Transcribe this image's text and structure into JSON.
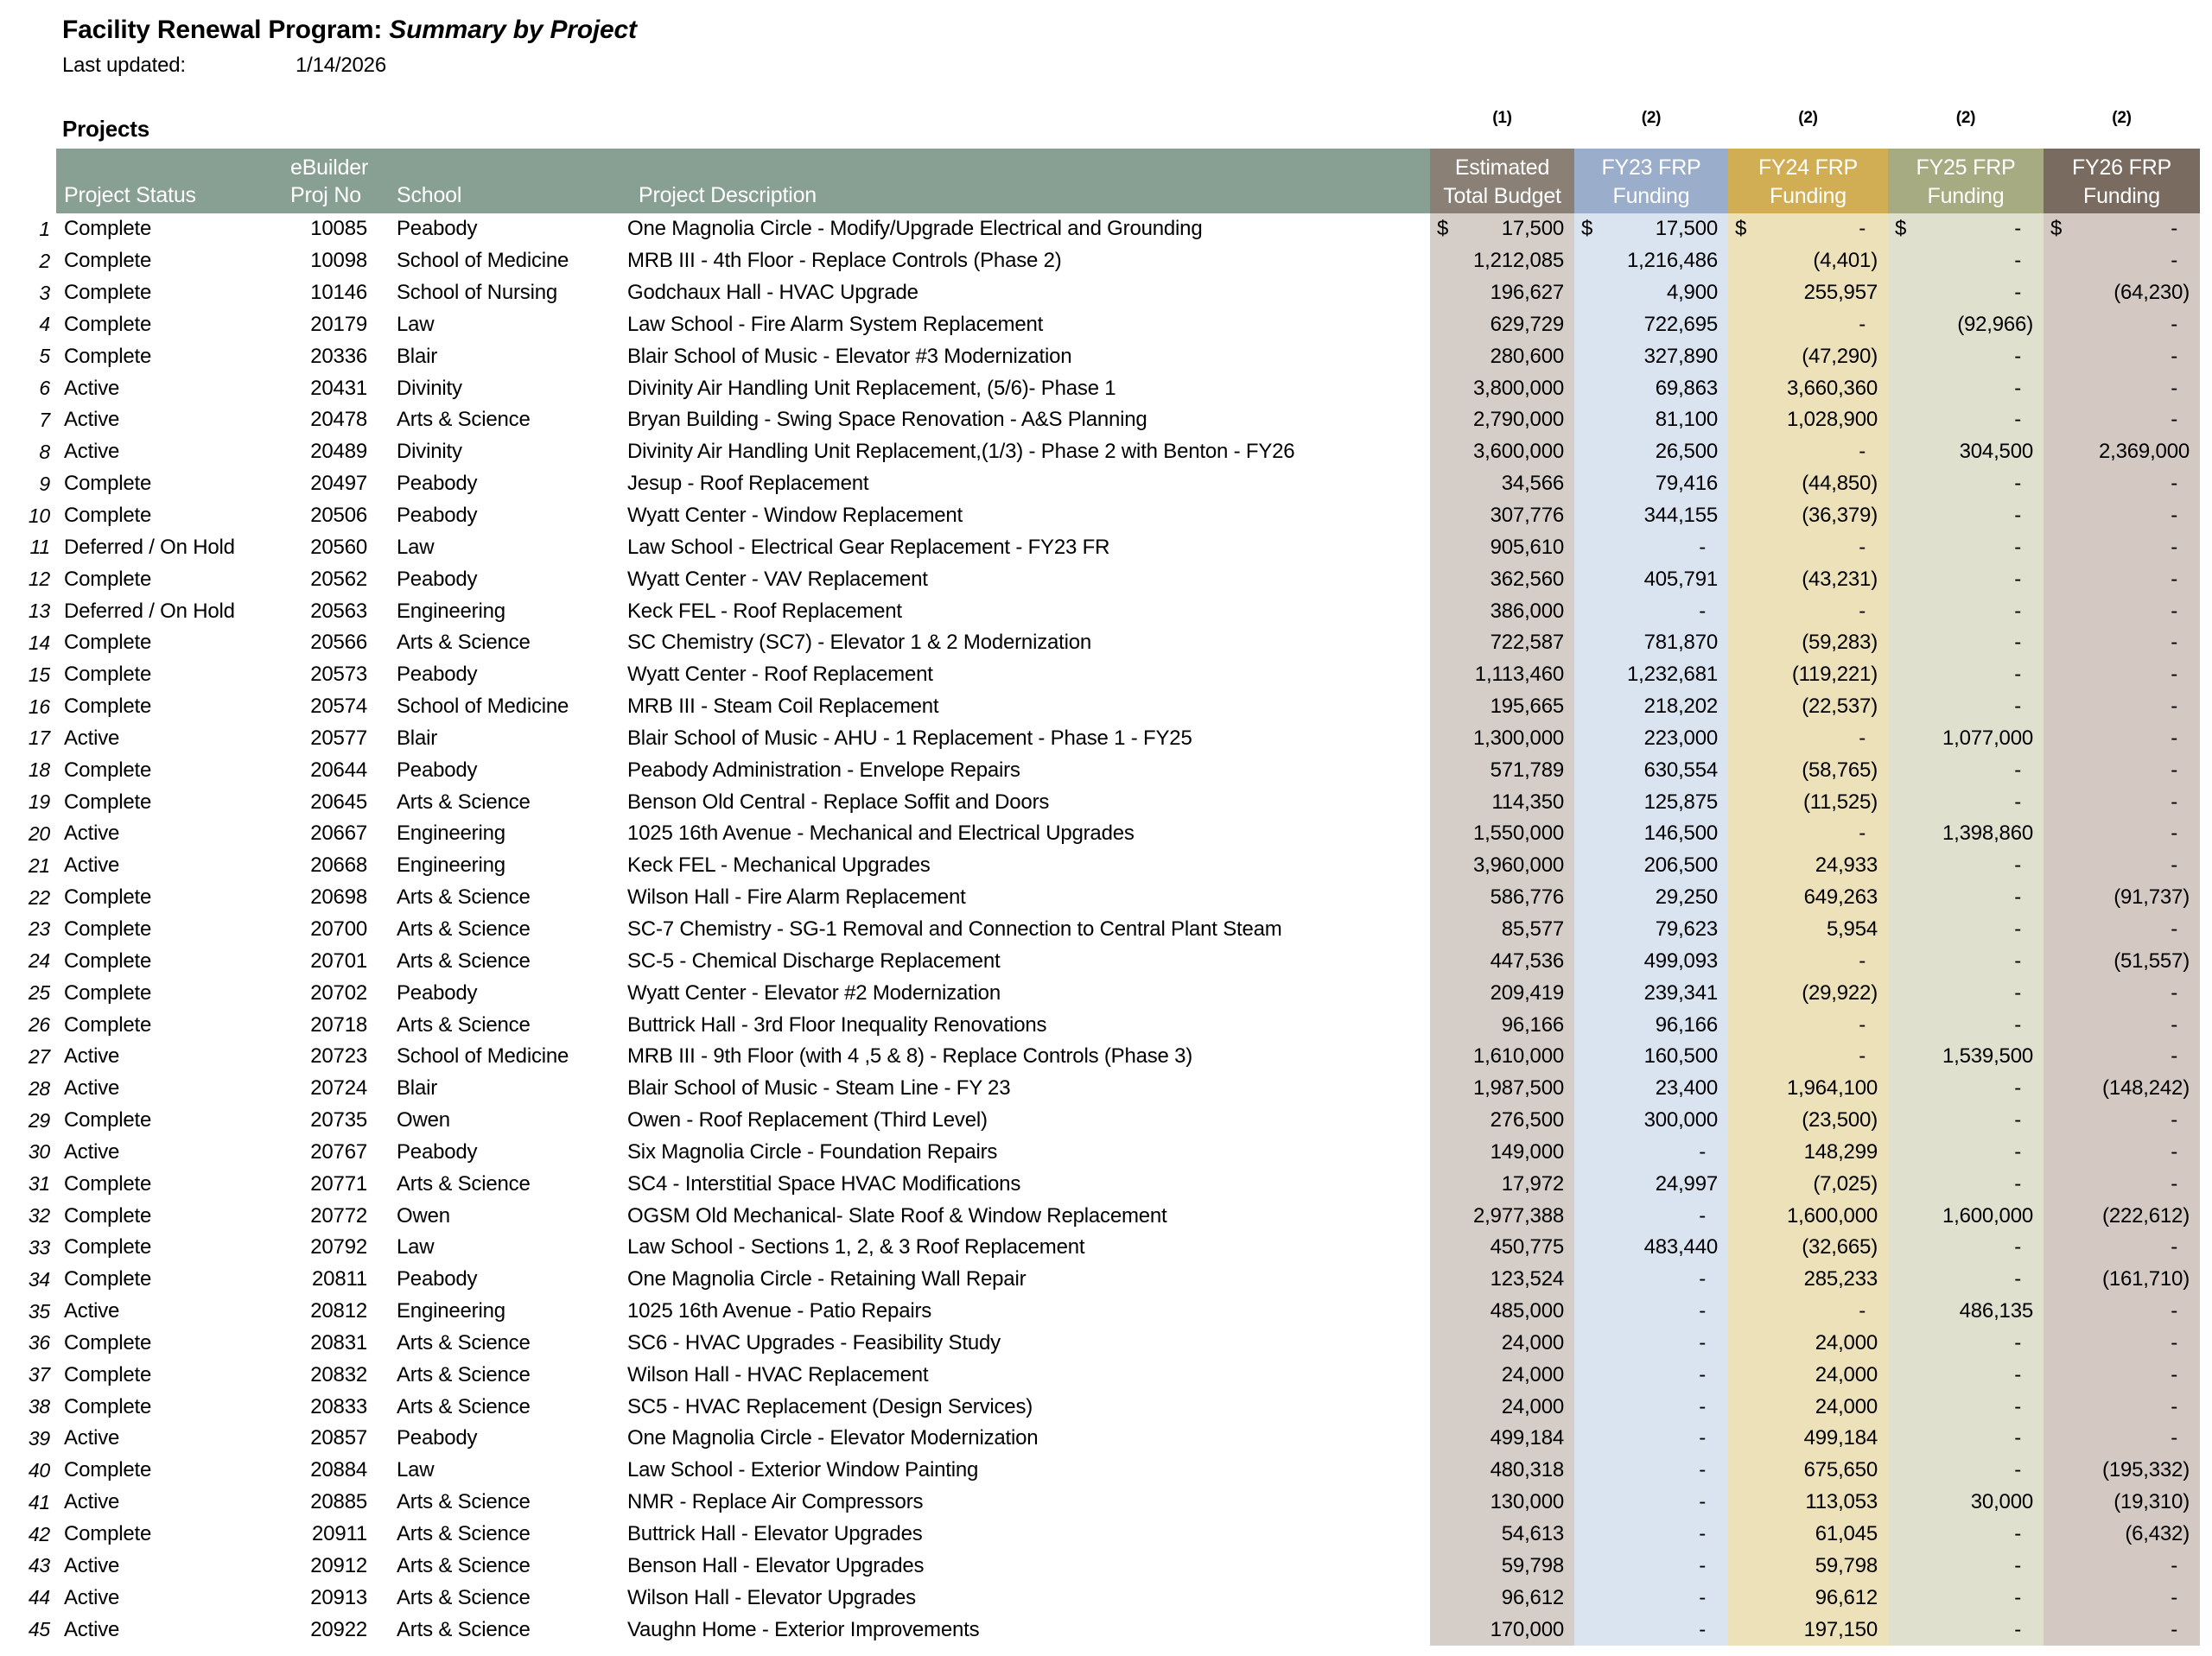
{
  "title": {
    "prefix": "Facility Renewal Program: ",
    "emphasis": "Summary by Project"
  },
  "last_updated": {
    "label": "Last updated:",
    "value": "1/14/2026"
  },
  "section_label": "Projects",
  "columns": {
    "left_header_bg": "#87A093",
    "row_number": "",
    "status": "Project Status",
    "projno_line1": "eBuilder",
    "projno_line2": "Proj No",
    "school": "School",
    "description": "Project Description",
    "funding": [
      {
        "note": "(1)",
        "line1": "Estimated",
        "line2": "Total Budget",
        "header_bg": "#8A8076",
        "body_bg": "#D5CEC8",
        "width": 167
      },
      {
        "note": "(2)",
        "line1": "FY23 FRP",
        "line2": "Funding",
        "header_bg": "#9AAECB",
        "body_bg": "#DAE3F0",
        "width": 178
      },
      {
        "note": "(2)",
        "line1": "FY24 FRP",
        "line2": "Funding",
        "header_bg": "#D1AE54",
        "body_bg": "#EDE1BA",
        "width": 185
      },
      {
        "note": "(2)",
        "line1": "FY25 FRP",
        "line2": "Funding",
        "header_bg": "#A6AB82",
        "body_bg": "#DFE0CE",
        "width": 180
      },
      {
        "note": "(2)",
        "line1": "FY26 FRP",
        "line2": "Funding",
        "header_bg": "#7A6B60",
        "body_bg": "#D3C9C2",
        "width": 181
      }
    ]
  },
  "rows": [
    {
      "num": "1",
      "status": "Complete",
      "proj": "10085",
      "school": "Peabody",
      "desc": "One Magnolia Circle - Modify/Upgrade Electrical and Grounding",
      "amounts": [
        "17,500",
        "17,500",
        "-",
        "-",
        "-"
      ],
      "dollar": true
    },
    {
      "num": "2",
      "status": "Complete",
      "proj": "10098",
      "school": "School of Medicine",
      "desc": "MRB III - 4th Floor - Replace Controls (Phase 2)",
      "amounts": [
        "1,212,085",
        "1,216,486",
        "(4,401)",
        "-",
        "-"
      ],
      "dollar": false
    },
    {
      "num": "3",
      "status": "Complete",
      "proj": "10146",
      "school": "School of Nursing",
      "desc": "Godchaux Hall - HVAC Upgrade",
      "amounts": [
        "196,627",
        "4,900",
        "255,957",
        "-",
        "(64,230)"
      ],
      "dollar": false
    },
    {
      "num": "4",
      "status": "Complete",
      "proj": "20179",
      "school": "Law",
      "desc": "Law School - Fire Alarm System Replacement",
      "amounts": [
        "629,729",
        "722,695",
        "-",
        "(92,966)",
        "-"
      ],
      "dollar": false
    },
    {
      "num": "5",
      "status": "Complete",
      "proj": "20336",
      "school": "Blair",
      "desc": "Blair School of Music - Elevator #3 Modernization",
      "amounts": [
        "280,600",
        "327,890",
        "(47,290)",
        "-",
        "-"
      ],
      "dollar": false
    },
    {
      "num": "6",
      "status": "Active",
      "proj": "20431",
      "school": "Divinity",
      "desc": "Divinity Air Handling Unit Replacement, (5/6)- Phase 1",
      "amounts": [
        "3,800,000",
        "69,863",
        "3,660,360",
        "-",
        "-"
      ],
      "dollar": false
    },
    {
      "num": "7",
      "status": "Active",
      "proj": "20478",
      "school": "Arts & Science",
      "desc": "Bryan Building - Swing Space Renovation - A&S Planning",
      "amounts": [
        "2,790,000",
        "81,100",
        "1,028,900",
        "-",
        "-"
      ],
      "dollar": false
    },
    {
      "num": "8",
      "status": "Active",
      "proj": "20489",
      "school": "Divinity",
      "desc": "Divinity Air Handling Unit Replacement,(1/3) - Phase 2 with Benton - FY26",
      "amounts": [
        "3,600,000",
        "26,500",
        "-",
        "304,500",
        "2,369,000"
      ],
      "dollar": false
    },
    {
      "num": "9",
      "status": "Complete",
      "proj": "20497",
      "school": "Peabody",
      "desc": "Jesup - Roof Replacement",
      "amounts": [
        "34,566",
        "79,416",
        "(44,850)",
        "-",
        "-"
      ],
      "dollar": false
    },
    {
      "num": "10",
      "status": "Complete",
      "proj": "20506",
      "school": "Peabody",
      "desc": "Wyatt Center - Window Replacement",
      "amounts": [
        "307,776",
        "344,155",
        "(36,379)",
        "-",
        "-"
      ],
      "dollar": false
    },
    {
      "num": "11",
      "status": "Deferred / On Hold",
      "proj": "20560",
      "school": "Law",
      "desc": "Law School - Electrical Gear Replacement - FY23 FR",
      "amounts": [
        "905,610",
        "-",
        "-",
        "-",
        "-"
      ],
      "dollar": false
    },
    {
      "num": "12",
      "status": "Complete",
      "proj": "20562",
      "school": "Peabody",
      "desc": "Wyatt Center - VAV Replacement",
      "amounts": [
        "362,560",
        "405,791",
        "(43,231)",
        "-",
        "-"
      ],
      "dollar": false
    },
    {
      "num": "13",
      "status": "Deferred / On Hold",
      "proj": "20563",
      "school": "Engineering",
      "desc": "Keck FEL - Roof Replacement",
      "amounts": [
        "386,000",
        "-",
        "-",
        "-",
        "-"
      ],
      "dollar": false
    },
    {
      "num": "14",
      "status": "Complete",
      "proj": "20566",
      "school": "Arts & Science",
      "desc": "SC Chemistry (SC7) - Elevator 1 & 2 Modernization",
      "amounts": [
        "722,587",
        "781,870",
        "(59,283)",
        "-",
        "-"
      ],
      "dollar": false
    },
    {
      "num": "15",
      "status": "Complete",
      "proj": "20573",
      "school": "Peabody",
      "desc": "Wyatt Center - Roof Replacement",
      "amounts": [
        "1,113,460",
        "1,232,681",
        "(119,221)",
        "-",
        "-"
      ],
      "dollar": false
    },
    {
      "num": "16",
      "status": "Complete",
      "proj": "20574",
      "school": "School of Medicine",
      "desc": "MRB III - Steam Coil Replacement",
      "amounts": [
        "195,665",
        "218,202",
        "(22,537)",
        "-",
        "-"
      ],
      "dollar": false
    },
    {
      "num": "17",
      "status": "Active",
      "proj": "20577",
      "school": "Blair",
      "desc": "Blair School of Music - AHU - 1 Replacement - Phase 1 - FY25",
      "amounts": [
        "1,300,000",
        "223,000",
        "-",
        "1,077,000",
        "-"
      ],
      "dollar": false
    },
    {
      "num": "18",
      "status": "Complete",
      "proj": "20644",
      "school": "Peabody",
      "desc": "Peabody Administration - Envelope Repairs",
      "amounts": [
        "571,789",
        "630,554",
        "(58,765)",
        "-",
        "-"
      ],
      "dollar": false
    },
    {
      "num": "19",
      "status": "Complete",
      "proj": "20645",
      "school": "Arts & Science",
      "desc": "Benson Old Central - Replace Soffit and Doors",
      "amounts": [
        "114,350",
        "125,875",
        "(11,525)",
        "-",
        "-"
      ],
      "dollar": false
    },
    {
      "num": "20",
      "status": "Active",
      "proj": "20667",
      "school": "Engineering",
      "desc": "1025 16th Avenue - Mechanical and Electrical Upgrades",
      "amounts": [
        "1,550,000",
        "146,500",
        "-",
        "1,398,860",
        "-"
      ],
      "dollar": false
    },
    {
      "num": "21",
      "status": "Active",
      "proj": "20668",
      "school": "Engineering",
      "desc": "Keck FEL - Mechanical Upgrades",
      "amounts": [
        "3,960,000",
        "206,500",
        "24,933",
        "-",
        "-"
      ],
      "dollar": false
    },
    {
      "num": "22",
      "status": "Complete",
      "proj": "20698",
      "school": "Arts & Science",
      "desc": "Wilson Hall - Fire Alarm Replacement",
      "amounts": [
        "586,776",
        "29,250",
        "649,263",
        "-",
        "(91,737)"
      ],
      "dollar": false
    },
    {
      "num": "23",
      "status": "Complete",
      "proj": "20700",
      "school": "Arts & Science",
      "desc": "SC-7 Chemistry - SG-1 Removal and Connection to Central Plant Steam",
      "amounts": [
        "85,577",
        "79,623",
        "5,954",
        "-",
        "-"
      ],
      "dollar": false
    },
    {
      "num": "24",
      "status": "Complete",
      "proj": "20701",
      "school": "Arts & Science",
      "desc": "SC-5 - Chemical Discharge Replacement",
      "amounts": [
        "447,536",
        "499,093",
        "-",
        "-",
        "(51,557)"
      ],
      "dollar": false
    },
    {
      "num": "25",
      "status": "Complete",
      "proj": "20702",
      "school": "Peabody",
      "desc": "Wyatt Center - Elevator #2 Modernization",
      "amounts": [
        "209,419",
        "239,341",
        "(29,922)",
        "-",
        "-"
      ],
      "dollar": false
    },
    {
      "num": "26",
      "status": "Complete",
      "proj": "20718",
      "school": "Arts & Science",
      "desc": "Buttrick Hall - 3rd Floor Inequality Renovations",
      "amounts": [
        "96,166",
        "96,166",
        "-",
        "-",
        "-"
      ],
      "dollar": false
    },
    {
      "num": "27",
      "status": "Active",
      "proj": "20723",
      "school": "School of Medicine",
      "desc": "MRB III - 9th Floor (with 4 ,5 & 8) - Replace Controls (Phase 3)",
      "amounts": [
        "1,610,000",
        "160,500",
        "-",
        "1,539,500",
        "-"
      ],
      "dollar": false
    },
    {
      "num": "28",
      "status": "Active",
      "proj": "20724",
      "school": "Blair",
      "desc": "Blair School of Music - Steam Line - FY 23",
      "amounts": [
        "1,987,500",
        "23,400",
        "1,964,100",
        "-",
        "(148,242)"
      ],
      "dollar": false
    },
    {
      "num": "29",
      "status": "Complete",
      "proj": "20735",
      "school": "Owen",
      "desc": "Owen - Roof Replacement (Third Level)",
      "amounts": [
        "276,500",
        "300,000",
        "(23,500)",
        "-",
        "-"
      ],
      "dollar": false
    },
    {
      "num": "30",
      "status": "Active",
      "proj": "20767",
      "school": "Peabody",
      "desc": "Six Magnolia Circle - Foundation Repairs",
      "amounts": [
        "149,000",
        "-",
        "148,299",
        "-",
        "-"
      ],
      "dollar": false
    },
    {
      "num": "31",
      "status": "Complete",
      "proj": "20771",
      "school": "Arts & Science",
      "desc": "SC4 - Interstitial Space HVAC Modifications",
      "amounts": [
        "17,972",
        "24,997",
        "(7,025)",
        "-",
        "-"
      ],
      "dollar": false
    },
    {
      "num": "32",
      "status": "Complete",
      "proj": "20772",
      "school": "Owen",
      "desc": "OGSM Old Mechanical- Slate Roof & Window Replacement",
      "amounts": [
        "2,977,388",
        "-",
        "1,600,000",
        "1,600,000",
        "(222,612)"
      ],
      "dollar": false
    },
    {
      "num": "33",
      "status": "Complete",
      "proj": "20792",
      "school": "Law",
      "desc": "Law School - Sections 1, 2, & 3  Roof Replacement",
      "amounts": [
        "450,775",
        "483,440",
        "(32,665)",
        "-",
        "-"
      ],
      "dollar": false
    },
    {
      "num": "34",
      "status": "Complete",
      "proj": "20811",
      "school": "Peabody",
      "desc": "One Magnolia Circle - Retaining Wall Repair",
      "amounts": [
        "123,524",
        "-",
        "285,233",
        "-",
        "(161,710)"
      ],
      "dollar": false
    },
    {
      "num": "35",
      "status": "Active",
      "proj": "20812",
      "school": "Engineering",
      "desc": "1025 16th Avenue - Patio Repairs",
      "amounts": [
        "485,000",
        "-",
        "-",
        "486,135",
        "-"
      ],
      "dollar": false
    },
    {
      "num": "36",
      "status": "Complete",
      "proj": "20831",
      "school": "Arts & Science",
      "desc": "SC6 - HVAC Upgrades - Feasibility Study",
      "amounts": [
        "24,000",
        "-",
        "24,000",
        "-",
        "-"
      ],
      "dollar": false
    },
    {
      "num": "37",
      "status": "Complete",
      "proj": "20832",
      "school": "Arts & Science",
      "desc": "Wilson Hall - HVAC Replacement",
      "amounts": [
        "24,000",
        "-",
        "24,000",
        "-",
        "-"
      ],
      "dollar": false
    },
    {
      "num": "38",
      "status": "Complete",
      "proj": "20833",
      "school": "Arts & Science",
      "desc": "SC5 - HVAC Replacement (Design Services)",
      "amounts": [
        "24,000",
        "-",
        "24,000",
        "-",
        "-"
      ],
      "dollar": false
    },
    {
      "num": "39",
      "status": "Active",
      "proj": "20857",
      "school": "Peabody",
      "desc": "One Magnolia Circle - Elevator Modernization",
      "amounts": [
        "499,184",
        "-",
        "499,184",
        "-",
        "-"
      ],
      "dollar": false
    },
    {
      "num": "40",
      "status": "Complete",
      "proj": "20884",
      "school": "Law",
      "desc": "Law School - Exterior Window Painting",
      "amounts": [
        "480,318",
        "-",
        "675,650",
        "-",
        "(195,332)"
      ],
      "dollar": false
    },
    {
      "num": "41",
      "status": "Active",
      "proj": "20885",
      "school": "Arts & Science",
      "desc": "NMR - Replace Air Compressors",
      "amounts": [
        "130,000",
        "-",
        "113,053",
        "30,000",
        "(19,310)"
      ],
      "dollar": false
    },
    {
      "num": "42",
      "status": "Complete",
      "proj": "20911",
      "school": "Arts & Science",
      "desc": "Buttrick Hall - Elevator Upgrades",
      "amounts": [
        "54,613",
        "-",
        "61,045",
        "-",
        "(6,432)"
      ],
      "dollar": false
    },
    {
      "num": "43",
      "status": "Active",
      "proj": "20912",
      "school": "Arts & Science",
      "desc": "Benson Hall - Elevator Upgrades",
      "amounts": [
        "59,798",
        "-",
        "59,798",
        "-",
        "-"
      ],
      "dollar": false
    },
    {
      "num": "44",
      "status": "Active",
      "proj": "20913",
      "school": "Arts & Science",
      "desc": "Wilson Hall - Elevator Upgrades",
      "amounts": [
        "96,612",
        "-",
        "96,612",
        "-",
        "-"
      ],
      "dollar": false
    },
    {
      "num": "45",
      "status": "Active",
      "proj": "20922",
      "school": "Arts & Science",
      "desc": "Vaughn Home - Exterior Improvements",
      "amounts": [
        "170,000",
        "-",
        "197,150",
        "-",
        "-"
      ],
      "dollar": false
    }
  ]
}
